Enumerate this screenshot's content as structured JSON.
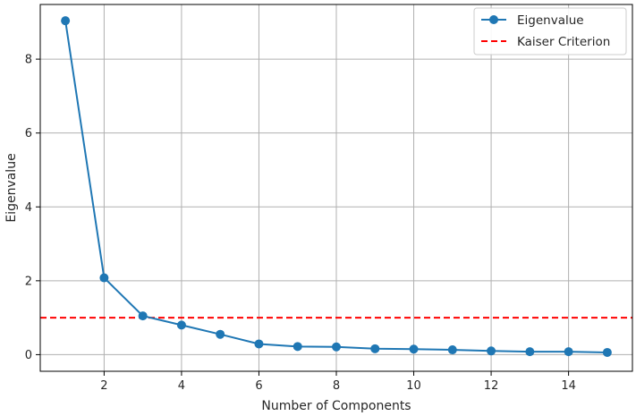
{
  "chart_data": {
    "type": "line",
    "title": "",
    "xlabel": "Number of Components",
    "ylabel": "Eigenvalue",
    "xlim": [
      0.35,
      15.65
    ],
    "ylim": [
      -0.45,
      9.48
    ],
    "x_ticks": [
      2,
      4,
      6,
      8,
      10,
      12,
      14
    ],
    "y_ticks": [
      0,
      2,
      4,
      6,
      8
    ],
    "grid": true,
    "legend_position": "top-right",
    "series": [
      {
        "name": "Eigenvalue",
        "color": "#1f77b4",
        "marker": "circle",
        "x": [
          1,
          2,
          3,
          4,
          5,
          6,
          7,
          8,
          9,
          10,
          11,
          12,
          13,
          14,
          15
        ],
        "y": [
          9.04,
          2.08,
          1.05,
          0.8,
          0.55,
          0.29,
          0.22,
          0.21,
          0.16,
          0.15,
          0.13,
          0.1,
          0.08,
          0.08,
          0.06
        ]
      }
    ],
    "reference_lines": [
      {
        "name": "Kaiser Criterion",
        "y": 1.0,
        "color": "#ff0000",
        "style": "dashed"
      }
    ]
  }
}
